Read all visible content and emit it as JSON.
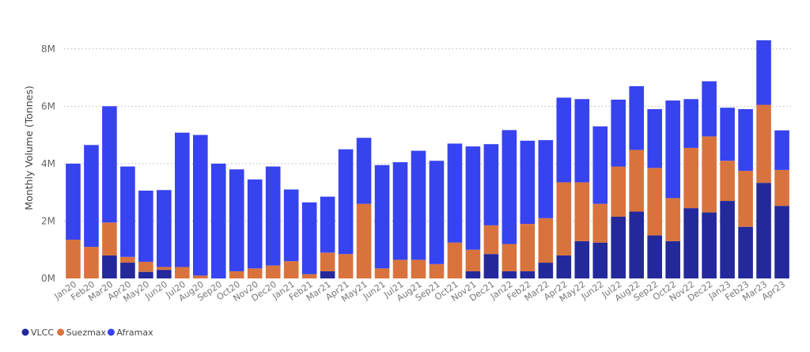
{
  "chart_data": {
    "type": "bar",
    "stacked": true,
    "ylabel": "Monthly Volume (Tonnes)",
    "ylim": [
      0,
      8600000
    ],
    "yticks": [
      0,
      2000000,
      4000000,
      6000000,
      8000000
    ],
    "ytick_labels": [
      "0M",
      "2M",
      "4M",
      "6M",
      "8M"
    ],
    "grid": true,
    "legend_position": "bottom-left",
    "categories": [
      "Jan20",
      "Feb20",
      "Mar20",
      "Apr20",
      "May20",
      "Jun20",
      "Jul20",
      "Aug20",
      "Sep20",
      "Oct20",
      "Nov20",
      "Dec20",
      "Jan21",
      "Feb21",
      "Mar21",
      "Apr21",
      "May21",
      "Jun21",
      "Jul21",
      "Aug21",
      "Sep21",
      "Oct21",
      "Nov21",
      "Dec21",
      "Jan22",
      "Feb22",
      "Mar22",
      "Apr22",
      "May22",
      "Jun22",
      "Jul22",
      "Aug22",
      "Sep22",
      "Oct22",
      "Nov22",
      "Dec22",
      "Jan23",
      "Feb23",
      "Mar23",
      "Apr23"
    ],
    "series": [
      {
        "name": "VLCC",
        "color": "#23299b",
        "values": [
          0,
          0,
          800000,
          550000,
          230000,
          300000,
          0,
          0,
          0,
          0,
          0,
          0,
          0,
          0,
          250000,
          0,
          0,
          0,
          0,
          0,
          0,
          0,
          250000,
          850000,
          250000,
          250000,
          550000,
          800000,
          1300000,
          1250000,
          2150000,
          2330000,
          1500000,
          1300000,
          2450000,
          2300000,
          2700000,
          1800000,
          3330000,
          2530000
        ]
      },
      {
        "name": "Suezmax",
        "color": "#d9733e",
        "values": [
          1350000,
          1100000,
          1150000,
          200000,
          350000,
          100000,
          400000,
          100000,
          0,
          250000,
          350000,
          450000,
          600000,
          150000,
          650000,
          850000,
          2600000,
          350000,
          650000,
          650000,
          500000,
          1250000,
          750000,
          1000000,
          950000,
          1650000,
          1550000,
          2550000,
          2050000,
          1350000,
          1750000,
          2150000,
          2350000,
          1500000,
          2100000,
          2650000,
          1400000,
          1950000,
          2720000,
          1250000
        ]
      },
      {
        "name": "Aframax",
        "color": "#3743ef",
        "values": [
          2650000,
          3550000,
          4050000,
          3150000,
          2480000,
          2680000,
          4680000,
          4900000,
          4000000,
          3550000,
          3100000,
          3450000,
          2500000,
          2500000,
          1950000,
          3650000,
          2300000,
          3600000,
          3400000,
          3800000,
          3600000,
          3450000,
          3600000,
          2830000,
          3970000,
          2900000,
          2720000,
          2950000,
          2900000,
          2700000,
          2330000,
          2220000,
          2050000,
          3400000,
          1700000,
          1920000,
          1850000,
          2150000,
          2250000,
          1380000
        ]
      }
    ]
  }
}
